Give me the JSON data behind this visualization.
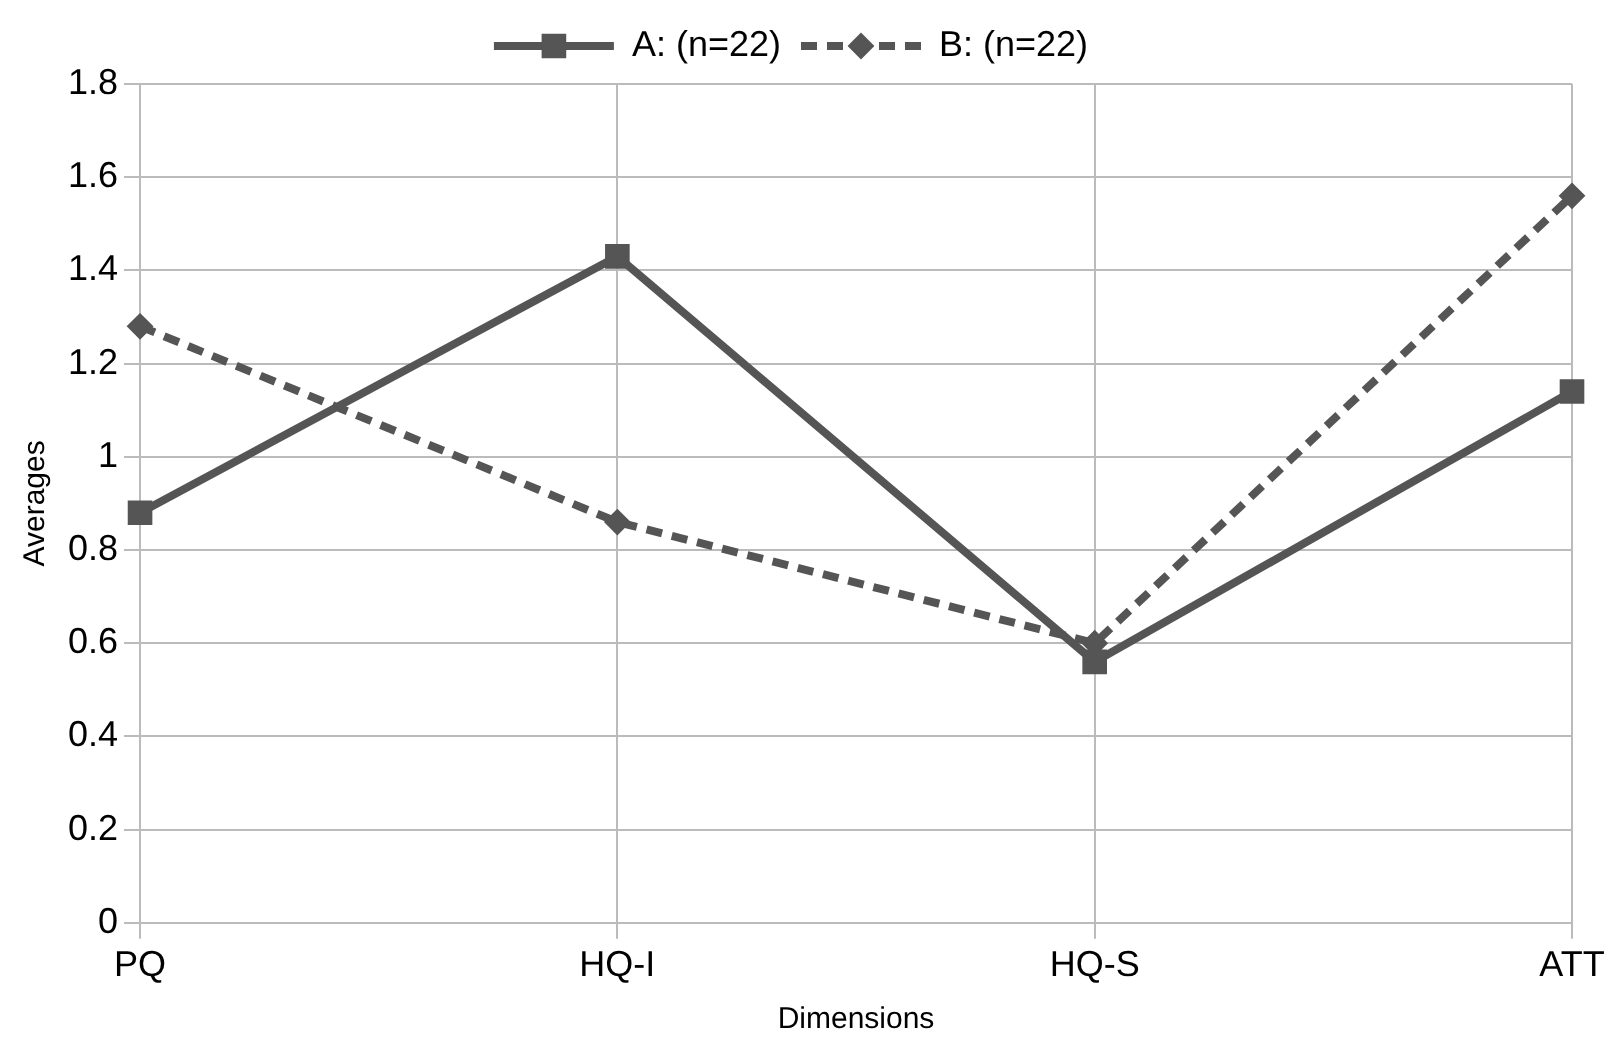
{
  "chart_data": {
    "type": "line",
    "xlabel": "Dimensions",
    "ylabel": "Averages",
    "categories": [
      "PQ",
      "HQ-I",
      "HQ-S",
      "ATT"
    ],
    "series": [
      {
        "name": "A: (n=22)",
        "color": "#555555",
        "values": [
          0.88,
          1.43,
          0.56,
          1.14
        ],
        "marker": "square",
        "line_style": "solid"
      },
      {
        "name": "B: (n=22)",
        "color": "#555555",
        "values": [
          1.28,
          0.86,
          0.6,
          1.56
        ],
        "marker": "diamond",
        "line_style": "dashed"
      }
    ],
    "ylim": [
      0,
      1.8
    ],
    "yticks": [
      0,
      0.2,
      0.4,
      0.6,
      0.8,
      1,
      1.2,
      1.4,
      1.6,
      1.8
    ],
    "grid": true,
    "legend": "top"
  }
}
